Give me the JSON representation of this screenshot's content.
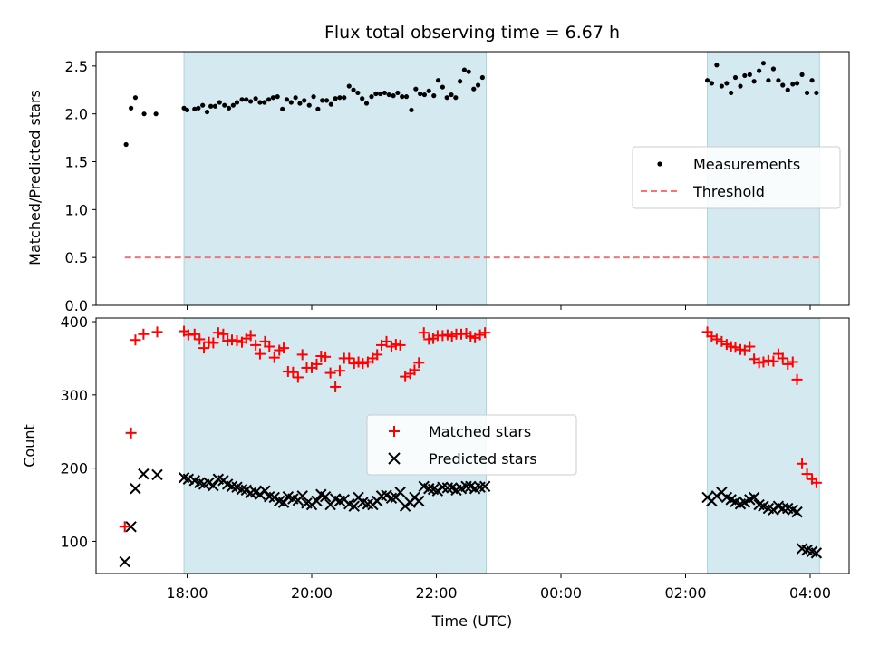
{
  "chart_data": [
    {
      "type": "scatter",
      "title": "Flux total observing time = 6.67 h",
      "ylabel": "Matched/Predicted stars",
      "ylim": [
        0,
        2.65
      ],
      "yticks": [
        "0.0",
        "0.5",
        "1.0",
        "1.5",
        "2.0",
        "2.5"
      ],
      "legend_placement": "center-right",
      "shaded_intervals_hours": [
        [
          17.95,
          22.8
        ],
        [
          26.35,
          28.15
        ]
      ],
      "shade_color": "#d4eaf0",
      "series": [
        {
          "name": "Measurements",
          "marker": "dot",
          "color": "#000000",
          "x_hours": [
            17.02,
            17.1,
            17.17,
            17.31,
            17.5,
            17.95,
            18.0,
            18.12,
            18.18,
            18.25,
            18.32,
            18.38,
            18.45,
            18.52,
            18.6,
            18.67,
            18.74,
            18.8,
            18.88,
            18.95,
            19.02,
            19.1,
            19.17,
            19.24,
            19.31,
            19.38,
            19.45,
            19.53,
            19.6,
            19.67,
            19.74,
            19.81,
            19.88,
            19.96,
            20.03,
            20.1,
            20.17,
            20.24,
            20.31,
            20.38,
            20.45,
            20.52,
            20.6,
            20.67,
            20.74,
            20.81,
            20.88,
            20.96,
            21.03,
            21.1,
            21.17,
            21.24,
            21.31,
            21.38,
            21.45,
            21.52,
            21.6,
            21.67,
            21.74,
            21.81,
            21.88,
            21.96,
            22.03,
            22.1,
            22.17,
            22.24,
            22.31,
            22.38,
            22.45,
            22.52,
            22.6,
            22.67,
            22.74,
            26.35,
            26.42,
            26.5,
            26.58,
            26.66,
            26.73,
            26.8,
            26.88,
            26.95,
            27.03,
            27.1,
            27.18,
            27.25,
            27.33,
            27.41,
            27.49,
            27.56,
            27.64,
            27.72,
            27.79,
            27.87,
            27.95,
            28.03,
            28.1
          ],
          "values": [
            1.68,
            2.06,
            2.17,
            2.0,
            2.0,
            2.06,
            2.04,
            2.05,
            2.06,
            2.09,
            2.02,
            2.08,
            2.08,
            2.12,
            2.09,
            2.06,
            2.09,
            2.12,
            2.15,
            2.15,
            2.13,
            2.16,
            2.12,
            2.12,
            2.15,
            2.17,
            2.18,
            2.05,
            2.15,
            2.12,
            2.17,
            2.11,
            2.14,
            2.09,
            2.18,
            2.05,
            2.14,
            2.14,
            2.1,
            2.16,
            2.17,
            2.17,
            2.29,
            2.25,
            2.22,
            2.16,
            2.11,
            2.18,
            2.21,
            2.21,
            2.22,
            2.2,
            2.19,
            2.22,
            2.18,
            2.18,
            2.04,
            2.26,
            2.21,
            2.2,
            2.24,
            2.19,
            2.35,
            2.28,
            2.17,
            2.2,
            2.17,
            2.34,
            2.46,
            2.44,
            2.26,
            2.3,
            2.38,
            2.35,
            2.32,
            2.51,
            2.29,
            2.32,
            2.22,
            2.38,
            2.29,
            2.4,
            2.41,
            2.34,
            2.45,
            2.53,
            2.35,
            2.47,
            2.35,
            2.3,
            2.25,
            2.31,
            2.32,
            2.41,
            2.22,
            2.35,
            2.22
          ],
          "__note_unused": ""
        },
        {
          "name": "Threshold",
          "marker": "dashed-line",
          "color": "#ff7070",
          "x_hours": [
            17.0,
            28.15
          ],
          "values": [
            0.5,
            0.5
          ]
        }
      ]
    },
    {
      "type": "scatter",
      "xlabel": "Time (UTC)",
      "ylabel": "Count",
      "ylim": [
        56,
        405
      ],
      "yticks": [
        "100",
        "200",
        "300",
        "400"
      ],
      "xticks": [
        "18:00",
        "20:00",
        "22:00",
        "00:00",
        "02:00",
        "04:00"
      ],
      "legend_placement": "center",
      "shaded_intervals_hours": [
        [
          17.95,
          22.8
        ],
        [
          26.35,
          28.15
        ]
      ],
      "shade_color": "#d4eaf0",
      "series": [
        {
          "name": "Matched stars",
          "marker": "plus",
          "color": "#ff0000",
          "x_hours": [
            17.0,
            17.1,
            17.17,
            17.3,
            17.52,
            17.95,
            18.02,
            18.12,
            18.2,
            18.27,
            18.35,
            18.42,
            18.5,
            18.58,
            18.65,
            18.72,
            18.8,
            18.88,
            18.95,
            19.02,
            19.1,
            19.17,
            19.25,
            19.32,
            19.4,
            19.48,
            19.55,
            19.62,
            19.7,
            19.78,
            19.85,
            19.92,
            20.0,
            20.08,
            20.15,
            20.22,
            20.3,
            20.38,
            20.45,
            20.52,
            20.6,
            20.68,
            20.75,
            20.82,
            20.9,
            20.98,
            21.05,
            21.12,
            21.2,
            21.28,
            21.35,
            21.42,
            21.5,
            21.58,
            21.65,
            21.72,
            21.8,
            21.88,
            21.95,
            22.02,
            22.1,
            22.18,
            22.25,
            22.32,
            22.4,
            22.48,
            22.55,
            22.62,
            22.7,
            22.78,
            26.35,
            26.42,
            26.5,
            26.58,
            26.66,
            26.73,
            26.8,
            26.88,
            26.95,
            27.03,
            27.1,
            27.18,
            27.25,
            27.33,
            27.41,
            27.49,
            27.56,
            27.64,
            27.72,
            27.79,
            27.87,
            27.95,
            28.03,
            28.1
          ],
          "values": [
            120,
            248,
            375,
            383,
            386,
            387,
            382,
            383,
            376,
            364,
            372,
            371,
            385,
            383,
            374,
            375,
            374,
            372,
            377,
            381,
            368,
            356,
            373,
            366,
            351,
            361,
            364,
            332,
            331,
            324,
            355,
            337,
            337,
            342,
            353,
            352,
            330,
            311,
            333,
            350,
            350,
            343,
            345,
            343,
            345,
            350,
            355,
            368,
            373,
            366,
            369,
            368,
            325,
            329,
            334,
            344,
            385,
            376,
            377,
            381,
            381,
            382,
            380,
            383,
            383,
            384,
            380,
            378,
            382,
            385,
            386,
            380,
            376,
            373,
            369,
            366,
            365,
            362,
            361,
            366,
            349,
            344,
            345,
            347,
            346,
            356,
            350,
            342,
            345,
            321,
            206,
            192,
            185,
            180
          ],
          "__note_unused": ""
        },
        {
          "name": "Predicted stars",
          "marker": "x",
          "color": "#000000",
          "x_hours": [
            17.0,
            17.1,
            17.17,
            17.3,
            17.52,
            17.95,
            18.02,
            18.12,
            18.2,
            18.27,
            18.35,
            18.42,
            18.5,
            18.58,
            18.65,
            18.72,
            18.8,
            18.88,
            18.95,
            19.02,
            19.1,
            19.17,
            19.25,
            19.32,
            19.4,
            19.48,
            19.55,
            19.62,
            19.7,
            19.78,
            19.85,
            19.92,
            20.0,
            20.08,
            20.15,
            20.22,
            20.3,
            20.38,
            20.45,
            20.52,
            20.6,
            20.68,
            20.75,
            20.82,
            20.9,
            20.98,
            21.05,
            21.12,
            21.2,
            21.28,
            21.35,
            21.42,
            21.5,
            21.58,
            21.65,
            21.72,
            21.8,
            21.88,
            21.95,
            22.02,
            22.1,
            22.18,
            22.25,
            22.32,
            22.4,
            22.48,
            22.55,
            22.62,
            22.7,
            22.78,
            26.35,
            26.42,
            26.5,
            26.58,
            26.66,
            26.73,
            26.8,
            26.88,
            26.95,
            27.03,
            27.1,
            27.18,
            27.25,
            27.33,
            27.41,
            27.49,
            27.56,
            27.64,
            27.72,
            27.79,
            27.87,
            27.95,
            28.03,
            28.1
          ],
          "values": [
            72,
            120,
            172,
            192,
            191,
            187,
            185,
            183,
            180,
            178,
            180,
            176,
            185,
            183,
            178,
            175,
            174,
            171,
            170,
            166,
            167,
            164,
            169,
            161,
            160,
            155,
            153,
            161,
            158,
            156,
            162,
            152,
            150,
            155,
            164,
            161,
            150,
            158,
            155,
            157,
            151,
            148,
            160,
            153,
            151,
            150,
            155,
            162,
            163,
            159,
            160,
            167,
            148,
            153,
            160,
            155,
            175,
            172,
            171,
            169,
            174,
            173,
            173,
            170,
            172,
            175,
            175,
            172,
            174,
            175,
            160,
            155,
            162,
            167,
            160,
            157,
            154,
            151,
            153,
            157,
            160,
            150,
            148,
            145,
            143,
            148,
            145,
            145,
            143,
            140,
            90,
            88,
            86,
            84
          ]
        }
      ]
    }
  ]
}
